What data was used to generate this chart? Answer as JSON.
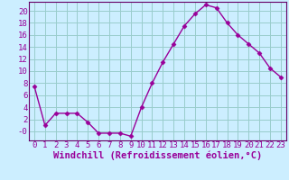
{
  "x": [
    0,
    1,
    2,
    3,
    4,
    5,
    6,
    7,
    8,
    9,
    10,
    11,
    12,
    13,
    14,
    15,
    16,
    17,
    18,
    19,
    20,
    21,
    22,
    23
  ],
  "y": [
    7.5,
    1.0,
    3.0,
    3.0,
    3.0,
    1.5,
    -0.3,
    -0.3,
    -0.3,
    -0.8,
    4.0,
    8.0,
    11.5,
    14.5,
    17.5,
    19.5,
    21.0,
    20.5,
    18.0,
    16.0,
    14.5,
    13.0,
    10.5,
    9.0
  ],
  "line_color": "#990099",
  "marker": "D",
  "marker_size": 2.5,
  "bg_color": "#cceeff",
  "grid_color": "#99cccc",
  "xlabel": "Windchill (Refroidissement éolien,°C)",
  "ylabel": "",
  "xlim": [
    -0.5,
    23.5
  ],
  "ylim": [
    -1.5,
    21.5
  ],
  "ytick_vals": [
    0,
    2,
    4,
    6,
    8,
    10,
    12,
    14,
    16,
    18,
    20
  ],
  "ytick_labels": [
    "-0",
    "2",
    "4",
    "6",
    "8",
    "10",
    "12",
    "14",
    "16",
    "18",
    "20"
  ],
  "xticks": [
    0,
    1,
    2,
    3,
    4,
    5,
    6,
    7,
    8,
    9,
    10,
    11,
    12,
    13,
    14,
    15,
    16,
    17,
    18,
    19,
    20,
    21,
    22,
    23
  ],
  "tick_label_fontsize": 6.5,
  "xlabel_fontsize": 7.5,
  "line_width": 1.0,
  "spine_color": "#660066"
}
